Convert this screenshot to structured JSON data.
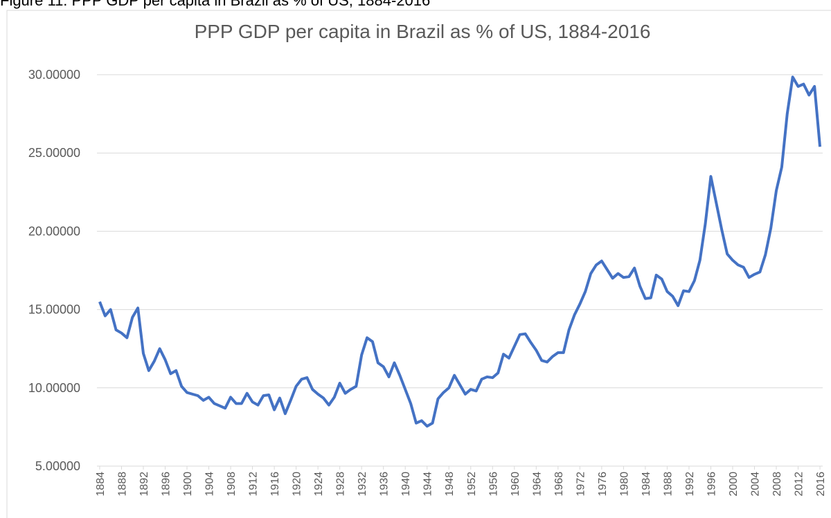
{
  "caption": "Figure 11: PPP GDP per capita in Brazil as % of US, 1884-2016",
  "chart_data": {
    "type": "line",
    "title": "PPP GDP per capita in Brazil as % of US, 1884-2016",
    "x": [
      1884,
      1885,
      1886,
      1887,
      1888,
      1889,
      1890,
      1891,
      1892,
      1893,
      1894,
      1895,
      1896,
      1897,
      1898,
      1899,
      1900,
      1901,
      1902,
      1903,
      1904,
      1905,
      1906,
      1907,
      1908,
      1909,
      1910,
      1911,
      1912,
      1913,
      1914,
      1915,
      1916,
      1917,
      1918,
      1919,
      1920,
      1921,
      1922,
      1923,
      1924,
      1925,
      1926,
      1927,
      1928,
      1929,
      1930,
      1931,
      1932,
      1933,
      1934,
      1935,
      1936,
      1937,
      1938,
      1939,
      1940,
      1941,
      1942,
      1943,
      1944,
      1945,
      1946,
      1947,
      1948,
      1949,
      1950,
      1951,
      1952,
      1953,
      1954,
      1955,
      1956,
      1957,
      1958,
      1959,
      1960,
      1961,
      1962,
      1963,
      1964,
      1965,
      1966,
      1967,
      1968,
      1969,
      1970,
      1971,
      1972,
      1973,
      1974,
      1975,
      1976,
      1977,
      1978,
      1979,
      1980,
      1981,
      1982,
      1983,
      1984,
      1985,
      1986,
      1987,
      1988,
      1989,
      1990,
      1991,
      1992,
      1993,
      1994,
      1995,
      1996,
      1997,
      1998,
      1999,
      2000,
      2001,
      2002,
      2003,
      2004,
      2005,
      2006,
      2007,
      2008,
      2009,
      2010,
      2011,
      2012,
      2013,
      2014,
      2015,
      2016
    ],
    "series": [
      {
        "name": "Brazil",
        "color": "#4472c4",
        "values": [
          15.5,
          14.6,
          15.0,
          13.7,
          13.5,
          13.2,
          14.5,
          15.1,
          12.2,
          11.1,
          11.7,
          12.5,
          11.8,
          10.9,
          11.1,
          10.1,
          9.7,
          9.6,
          9.5,
          9.2,
          9.4,
          9.0,
          8.85,
          8.7,
          9.4,
          9.0,
          9.0,
          9.65,
          9.1,
          8.9,
          9.5,
          9.55,
          8.6,
          9.35,
          8.35,
          9.2,
          10.1,
          10.55,
          10.65,
          9.9,
          9.6,
          9.35,
          8.9,
          9.4,
          10.3,
          9.65,
          9.9,
          10.1,
          12.1,
          13.2,
          12.95,
          11.6,
          11.35,
          10.7,
          11.6,
          10.8,
          9.9,
          9.0,
          7.75,
          7.9,
          7.55,
          7.75,
          9.3,
          9.7,
          10.0,
          10.8,
          10.2,
          9.6,
          9.9,
          9.8,
          10.55,
          10.7,
          10.65,
          10.95,
          12.15,
          11.9,
          12.65,
          13.4,
          13.45,
          12.9,
          12.4,
          11.75,
          11.65,
          12.0,
          12.25,
          12.25,
          13.7,
          14.65,
          15.35,
          16.15,
          17.3,
          17.85,
          18.1,
          17.55,
          17.0,
          17.3,
          17.05,
          17.1,
          17.65,
          16.5,
          15.7,
          15.75,
          17.2,
          16.95,
          16.15,
          15.85,
          15.25,
          16.2,
          16.15,
          16.85,
          18.15,
          20.5,
          23.5,
          21.8,
          20.1,
          18.55,
          18.15,
          17.85,
          17.7,
          17.05,
          17.25,
          17.4,
          18.5,
          20.2,
          22.6,
          24.1,
          27.5,
          29.85,
          29.25,
          29.4,
          28.7,
          29.25,
          25.4
        ]
      }
    ],
    "xlim": [
      1883.5,
      2016.5
    ],
    "xticks": [
      1884,
      1888,
      1892,
      1896,
      1900,
      1904,
      1908,
      1912,
      1916,
      1920,
      1924,
      1928,
      1932,
      1936,
      1940,
      1944,
      1948,
      1952,
      1956,
      1960,
      1964,
      1968,
      1972,
      1976,
      1980,
      1984,
      1988,
      1992,
      1996,
      2000,
      2004,
      2008,
      2012,
      2016
    ],
    "ylim": [
      5,
      30
    ],
    "yticks": [
      {
        "value": 5,
        "label": "5.00000"
      },
      {
        "value": 10,
        "label": "10.00000"
      },
      {
        "value": 15,
        "label": "15.00000"
      },
      {
        "value": 20,
        "label": "20.00000"
      },
      {
        "value": 25,
        "label": "25.00000"
      },
      {
        "value": 30,
        "label": "30.00000"
      }
    ],
    "grid": true
  }
}
